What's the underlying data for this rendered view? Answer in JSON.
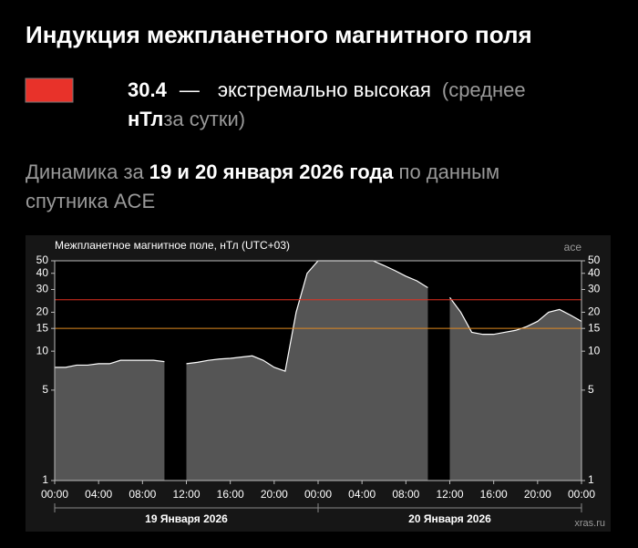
{
  "title": "Индукция межпланетного магнитного поля",
  "status": {
    "value": "30.4",
    "dash": "—",
    "level": "экстремально высокая",
    "note_open": "(среднее",
    "unit": "нТл",
    "note_close": "за сутки)"
  },
  "subtitle": {
    "lead": "Динамика за",
    "dates": "19 и 20 января 2026 года",
    "tail": "по данным",
    "line2": "спутника ACE"
  },
  "chart_data": {
    "type": "area",
    "title": "Межпланетное магнитное поле, нТл (UTC+03)",
    "source": "ace",
    "watermark": "xras.ru",
    "log_y": true,
    "color": "#555555",
    "line_color": "#ffffff",
    "x": [
      0,
      1,
      2,
      3,
      4,
      5,
      6,
      7,
      8,
      9,
      10,
      11,
      12,
      13,
      14,
      15,
      16,
      17,
      18,
      19,
      20,
      21,
      22,
      23,
      24,
      25,
      26,
      27,
      28,
      29,
      30,
      31,
      32,
      33,
      34,
      35,
      36,
      37,
      38,
      39,
      40,
      41,
      42,
      43,
      44,
      45,
      46,
      47,
      48
    ],
    "values": [
      7.5,
      7.5,
      7.8,
      7.8,
      8,
      8,
      8.5,
      8.5,
      8.5,
      8.5,
      8.3,
      null,
      8,
      8.2,
      8.5,
      8.7,
      8.8,
      9,
      9.2,
      8.5,
      7.5,
      7,
      20,
      40,
      50,
      50,
      50,
      50,
      50,
      50,
      46,
      42,
      38,
      35,
      31,
      null,
      26,
      20,
      14,
      13.5,
      13.5,
      14,
      14.5,
      15.5,
      17,
      20,
      21,
      19,
      17
    ],
    "xlim": [
      0,
      48
    ],
    "ylim": [
      1,
      50
    ],
    "xticks": [
      {
        "value": 0,
        "label": "00:00"
      },
      {
        "value": 4,
        "label": "04:00"
      },
      {
        "value": 8,
        "label": "08:00"
      },
      {
        "value": 12,
        "label": "12:00"
      },
      {
        "value": 16,
        "label": "16:00"
      },
      {
        "value": 20,
        "label": "20:00"
      },
      {
        "value": 24,
        "label": "00:00"
      },
      {
        "value": 28,
        "label": "04:00"
      },
      {
        "value": 32,
        "label": "08:00"
      },
      {
        "value": 36,
        "label": "12:00"
      },
      {
        "value": 40,
        "label": "16:00"
      },
      {
        "value": 44,
        "label": "20:00"
      },
      {
        "value": 48,
        "label": "00:00"
      }
    ],
    "yticks": [
      1,
      5,
      10,
      15,
      20,
      30,
      40,
      50
    ],
    "hlines": [
      {
        "value": 25,
        "color": "#e03020"
      },
      {
        "value": 15,
        "color": "#e08a20"
      }
    ],
    "days": [
      {
        "label": "19 Января 2026",
        "start": 0,
        "end": 24
      },
      {
        "label": "20 Января 2026",
        "start": 24,
        "end": 48
      }
    ]
  }
}
